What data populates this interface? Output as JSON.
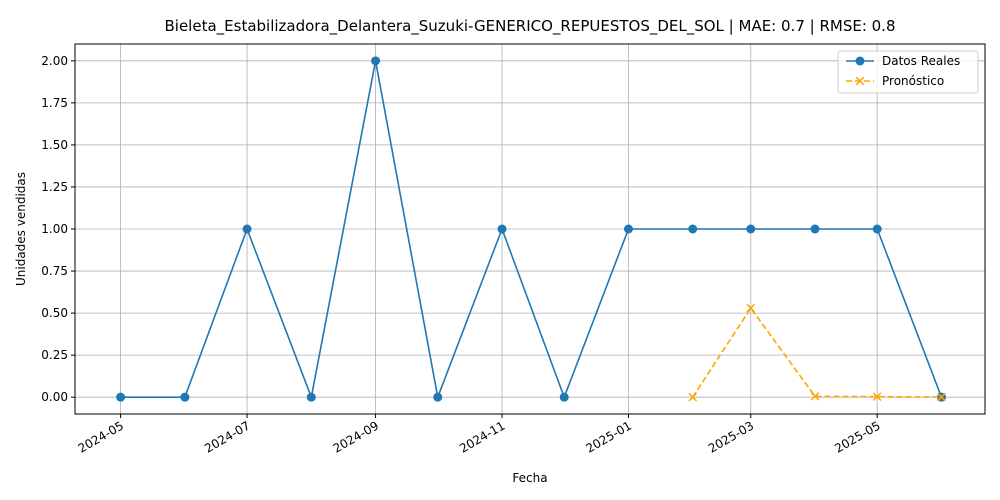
{
  "chart_data": {
    "type": "line",
    "title": "Bieleta_Estabilizadora_Delantera_Suzuki-GENERICO_REPUESTOS_DEL_SOL | MAE: 0.7 | RMSE: 0.8",
    "xlabel": "Fecha",
    "ylabel": "Unidades vendidas",
    "xlim": [
      "2024-04-09",
      "2025-06-22"
    ],
    "ylim": [
      -0.1,
      2.1
    ],
    "xticks": [
      "2024-05",
      "2024-07",
      "2024-09",
      "2024-11",
      "2025-01",
      "2025-03",
      "2025-05"
    ],
    "yticks": [
      "0.00",
      "0.25",
      "0.50",
      "0.75",
      "1.00",
      "1.25",
      "1.50",
      "1.75",
      "2.00"
    ],
    "grid": true,
    "legend_position": "top-right",
    "series": [
      {
        "name": "Datos Reales",
        "color": "#1f77b4",
        "marker": "circle",
        "line_style": "solid",
        "x": [
          "2024-05-01",
          "2024-06-01",
          "2024-07-01",
          "2024-08-01",
          "2024-09-01",
          "2024-10-01",
          "2024-11-01",
          "2024-12-01",
          "2025-01-01",
          "2025-02-01",
          "2025-03-01",
          "2025-04-01",
          "2025-05-01",
          "2025-06-01"
        ],
        "y": [
          0,
          0,
          1,
          0,
          2,
          0,
          1,
          0,
          1,
          1,
          1,
          1,
          1,
          0
        ]
      },
      {
        "name": "Pronóstico",
        "color": "#ffa500",
        "marker": "x",
        "line_style": "dashed",
        "x": [
          "2025-02-01",
          "2025-03-01",
          "2025-04-01",
          "2025-05-01",
          "2025-06-01"
        ],
        "y": [
          0,
          0.53,
          0.005,
          0.003,
          0.001
        ]
      }
    ]
  }
}
